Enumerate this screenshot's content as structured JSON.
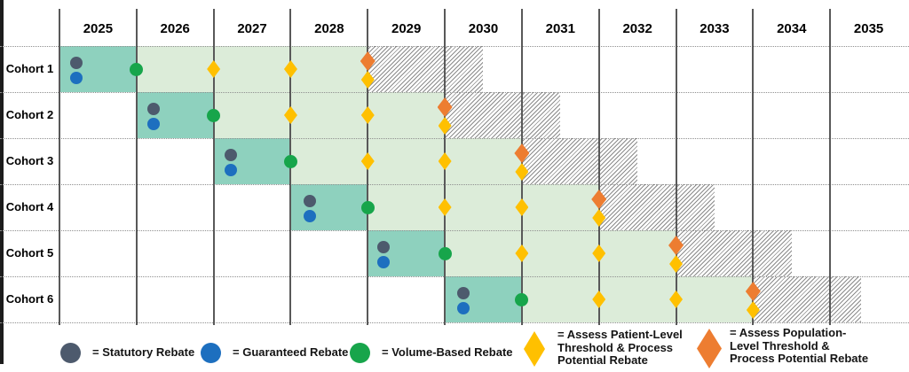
{
  "chart_data": {
    "type": "gantt",
    "title": "",
    "xlabel": "",
    "ylabel": "",
    "x_categories": [
      "2025",
      "2026",
      "2027",
      "2028",
      "2029",
      "2030",
      "2031",
      "2032",
      "2033",
      "2034",
      "2035"
    ],
    "x_range": [
      2025,
      2036
    ],
    "grid": "vertical-year-lines-with-dotted-row-separators",
    "colors": {
      "teal": "#8ed1be",
      "light_green": "#dcecd9",
      "hatch_line": "#8b8b8b",
      "grid": "#595959",
      "statutory": "#4d5a6d",
      "guaranteed": "#1d6fbf",
      "volume": "#17a54b",
      "patient": "#ffc000",
      "population": "#ed7d31"
    },
    "rows": [
      {
        "label": "Cohort 1",
        "phases": [
          {
            "fill": "teal",
            "start": 2025,
            "end": 2026
          },
          {
            "fill": "light_green",
            "start": 2026,
            "end": 2029
          },
          {
            "fill": "hatch",
            "start": 2029,
            "end": 2030.5
          }
        ],
        "markers": [
          {
            "kind": "statutory",
            "x": 2025.22,
            "slot": "upper"
          },
          {
            "kind": "guaranteed",
            "x": 2025.22,
            "slot": "lower"
          },
          {
            "kind": "volume",
            "x": 2026,
            "slot": "center"
          },
          {
            "kind": "patient",
            "x": 2027,
            "slot": "center"
          },
          {
            "kind": "patient",
            "x": 2028,
            "slot": "center"
          },
          {
            "kind": "population",
            "x": 2029,
            "slot": "pair_top"
          },
          {
            "kind": "patient",
            "x": 2029,
            "slot": "pair_bottom"
          }
        ]
      },
      {
        "label": "Cohort 2",
        "phases": [
          {
            "fill": "teal",
            "start": 2026,
            "end": 2027
          },
          {
            "fill": "light_green",
            "start": 2027,
            "end": 2030
          },
          {
            "fill": "hatch",
            "start": 2030,
            "end": 2031.5
          }
        ],
        "markers": [
          {
            "kind": "statutory",
            "x": 2026.22,
            "slot": "upper"
          },
          {
            "kind": "guaranteed",
            "x": 2026.22,
            "slot": "lower"
          },
          {
            "kind": "volume",
            "x": 2027,
            "slot": "center"
          },
          {
            "kind": "patient",
            "x": 2028,
            "slot": "center"
          },
          {
            "kind": "patient",
            "x": 2029,
            "slot": "center"
          },
          {
            "kind": "population",
            "x": 2030,
            "slot": "pair_top"
          },
          {
            "kind": "patient",
            "x": 2030,
            "slot": "pair_bottom"
          }
        ]
      },
      {
        "label": "Cohort 3",
        "phases": [
          {
            "fill": "teal",
            "start": 2027,
            "end": 2028
          },
          {
            "fill": "light_green",
            "start": 2028,
            "end": 2031
          },
          {
            "fill": "hatch",
            "start": 2031,
            "end": 2032.5
          }
        ],
        "markers": [
          {
            "kind": "statutory",
            "x": 2027.22,
            "slot": "upper"
          },
          {
            "kind": "guaranteed",
            "x": 2027.22,
            "slot": "lower"
          },
          {
            "kind": "volume",
            "x": 2028,
            "slot": "center"
          },
          {
            "kind": "patient",
            "x": 2029,
            "slot": "center"
          },
          {
            "kind": "patient",
            "x": 2030,
            "slot": "center"
          },
          {
            "kind": "population",
            "x": 2031,
            "slot": "pair_top"
          },
          {
            "kind": "patient",
            "x": 2031,
            "slot": "pair_bottom"
          }
        ]
      },
      {
        "label": "Cohort 4",
        "phases": [
          {
            "fill": "teal",
            "start": 2028,
            "end": 2029
          },
          {
            "fill": "light_green",
            "start": 2029,
            "end": 2032
          },
          {
            "fill": "hatch",
            "start": 2032,
            "end": 2033.5
          }
        ],
        "markers": [
          {
            "kind": "statutory",
            "x": 2028.25,
            "slot": "upper"
          },
          {
            "kind": "guaranteed",
            "x": 2028.25,
            "slot": "lower"
          },
          {
            "kind": "volume",
            "x": 2029,
            "slot": "center"
          },
          {
            "kind": "patient",
            "x": 2030,
            "slot": "center"
          },
          {
            "kind": "patient",
            "x": 2031,
            "slot": "center"
          },
          {
            "kind": "population",
            "x": 2032,
            "slot": "pair_top"
          },
          {
            "kind": "patient",
            "x": 2032,
            "slot": "pair_bottom"
          }
        ]
      },
      {
        "label": "Cohort 5",
        "phases": [
          {
            "fill": "teal",
            "start": 2029,
            "end": 2030
          },
          {
            "fill": "light_green",
            "start": 2030,
            "end": 2033
          },
          {
            "fill": "hatch",
            "start": 2033,
            "end": 2034.5
          }
        ],
        "markers": [
          {
            "kind": "statutory",
            "x": 2029.2,
            "slot": "upper"
          },
          {
            "kind": "guaranteed",
            "x": 2029.2,
            "slot": "lower"
          },
          {
            "kind": "volume",
            "x": 2030,
            "slot": "center"
          },
          {
            "kind": "patient",
            "x": 2031,
            "slot": "center"
          },
          {
            "kind": "patient",
            "x": 2032,
            "slot": "center"
          },
          {
            "kind": "population",
            "x": 2033,
            "slot": "pair_top"
          },
          {
            "kind": "patient",
            "x": 2033,
            "slot": "pair_bottom"
          }
        ]
      },
      {
        "label": "Cohort 6",
        "phases": [
          {
            "fill": "teal",
            "start": 2030,
            "end": 2031
          },
          {
            "fill": "light_green",
            "start": 2031,
            "end": 2034
          },
          {
            "fill": "hatch",
            "start": 2034,
            "end": 2035.4
          }
        ],
        "markers": [
          {
            "kind": "statutory",
            "x": 2030.24,
            "slot": "upper"
          },
          {
            "kind": "guaranteed",
            "x": 2030.24,
            "slot": "lower"
          },
          {
            "kind": "volume",
            "x": 2031,
            "slot": "center"
          },
          {
            "kind": "patient",
            "x": 2032,
            "slot": "center"
          },
          {
            "kind": "patient",
            "x": 2033,
            "slot": "center"
          },
          {
            "kind": "population",
            "x": 2034,
            "slot": "pair_top"
          },
          {
            "kind": "patient",
            "x": 2034,
            "slot": "pair_bottom"
          }
        ]
      }
    ],
    "legend": [
      {
        "kind": "statutory",
        "shape": "circle",
        "label": "= Statutory Rebate"
      },
      {
        "kind": "guaranteed",
        "shape": "circle",
        "label": "= Guaranteed Rebate"
      },
      {
        "kind": "volume",
        "shape": "circle",
        "label": "= Volume-Based Rebate"
      },
      {
        "kind": "patient",
        "shape": "diamond",
        "label": "= Assess Patient-Level\nThreshold & Process\nPotential Rebate"
      },
      {
        "kind": "population",
        "shape": "diamond",
        "label": "= Assess Population-\nLevel Threshold &\nProcess Potential Rebate"
      }
    ],
    "legend_position": "bottom"
  }
}
